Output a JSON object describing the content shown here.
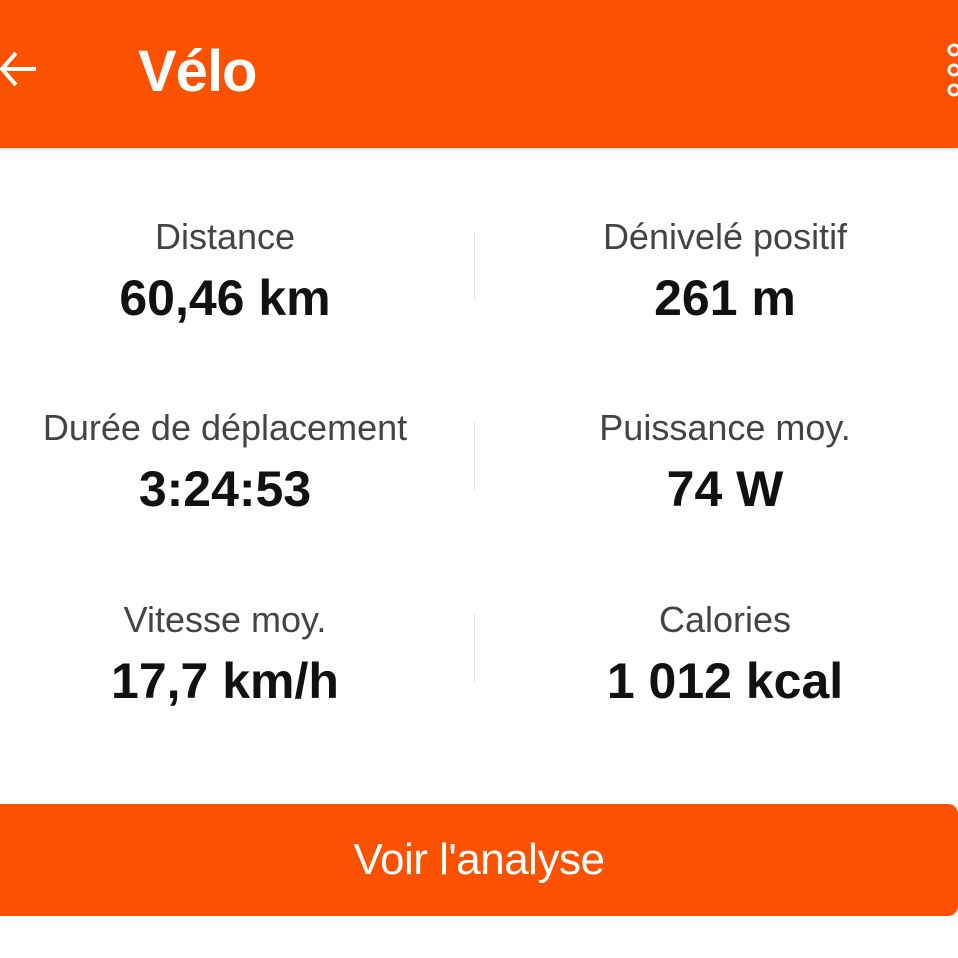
{
  "header": {
    "title": "Vélo",
    "back_icon": "arrow-left-icon",
    "menu_icon": "more-vertical-icon",
    "color": "#FC5200"
  },
  "stats": [
    {
      "label": "Distance",
      "value": "60,46 km"
    },
    {
      "label": "Dénivelé positif",
      "value": "261 m"
    },
    {
      "label": "Durée de déplacement",
      "value": "3:24:53"
    },
    {
      "label": "Puissance moy.",
      "value": "74 W"
    },
    {
      "label": "Vitesse moy.",
      "value": "17,7 km/h"
    },
    {
      "label": "Calories",
      "value": "1 012 kcal"
    }
  ],
  "button": {
    "label": "Voir l'analyse"
  }
}
